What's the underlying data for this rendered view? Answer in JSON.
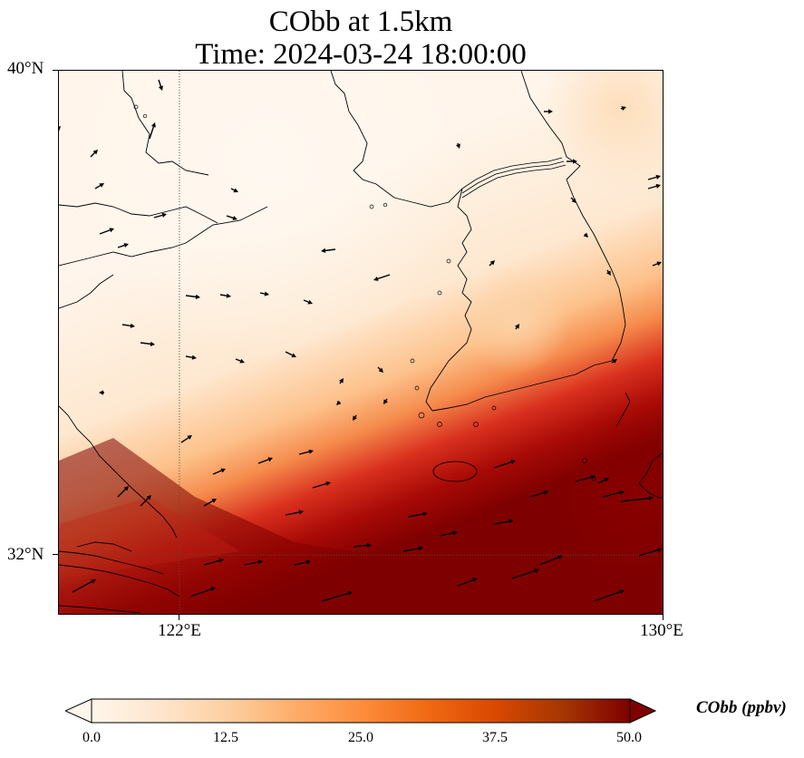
{
  "title": {
    "line1": "CObb at 1.5km",
    "line2": "Time: 2024-03-24 18:00:00"
  },
  "axes": {
    "lat_labels": [
      "40°N",
      "32°N"
    ],
    "lon_labels": [
      "122°E",
      "130°E"
    ],
    "lat_range": [
      31,
      40
    ],
    "lon_range": [
      120,
      130
    ]
  },
  "colorbar": {
    "title": "CObb (ppbv)",
    "ticks": [
      "0.0",
      "12.5",
      "25.0",
      "37.5",
      "50.0"
    ],
    "range": [
      0,
      50
    ],
    "colormap": [
      "#fff5eb",
      "#fee6ce",
      "#fdd0a2",
      "#fdae6b",
      "#fd8d3c",
      "#f16913",
      "#d94801",
      "#a63603",
      "#7f0000"
    ]
  },
  "colors": {
    "low": "#fff5eb",
    "high": "#7f0000",
    "coastline": "#000000",
    "gridline": "#5a4a3a"
  }
}
